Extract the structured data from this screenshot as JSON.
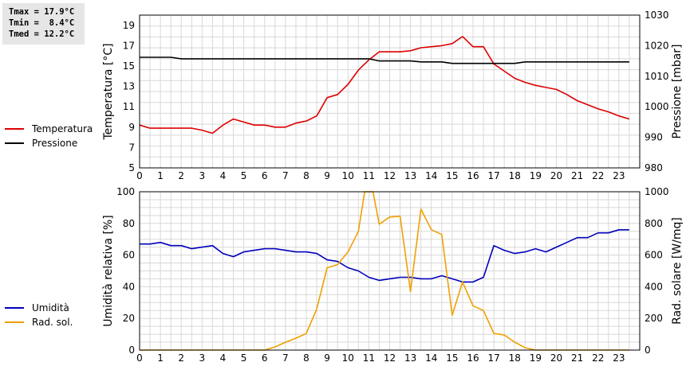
{
  "stats": {
    "tmax": "Tmax = 17.9°C",
    "tmin": "Tmin =  8.4°C",
    "tmed": "Tmed = 12.2°C"
  },
  "colors": {
    "temperature": "#dd0000",
    "pressure": "#000000",
    "humidity": "#0000bb",
    "radiation": "#f0a000",
    "grid": "#d8d8d8"
  },
  "chart_data": [
    {
      "type": "line",
      "x_ticks": [
        "0",
        "1",
        "2",
        "3",
        "4",
        "5",
        "6",
        "7",
        "8",
        "9",
        "10",
        "11",
        "12",
        "13",
        "14",
        "15",
        "16",
        "17",
        "18",
        "19",
        "20",
        "21",
        "22",
        "23"
      ],
      "ylabel": "Temperatura [°C]",
      "ylabel_right": "Pressione [mbar]",
      "ylim": [
        5,
        20
      ],
      "ylim_right": [
        980,
        1030
      ],
      "y_ticks": [
        "5",
        "7",
        "9",
        "11",
        "13",
        "15",
        "17",
        "19"
      ],
      "y_ticks_right": [
        "980",
        "990",
        "1000",
        "1010",
        "1020",
        "1030"
      ],
      "grid": true,
      "series": [
        {
          "name": "Temperatura",
          "axis": "left",
          "color": "#dd0000",
          "x": [
            0,
            0.5,
            1,
            1.5,
            2,
            2.5,
            3,
            3.5,
            4,
            4.5,
            5,
            5.5,
            6,
            6.5,
            7,
            7.5,
            8,
            8.5,
            9,
            9.5,
            10,
            10.5,
            11,
            11.5,
            12,
            12.5,
            13,
            13.5,
            14,
            14.5,
            15,
            15.5,
            16,
            16.5,
            17,
            17.5,
            18,
            18.5,
            19,
            19.5,
            20,
            20.5,
            21,
            21.5,
            22,
            22.5,
            23,
            23.5
          ],
          "y": [
            9.2,
            8.9,
            8.9,
            8.9,
            8.9,
            8.9,
            8.7,
            8.4,
            9.2,
            9.8,
            9.5,
            9.2,
            9.2,
            9.0,
            9.0,
            9.4,
            9.6,
            10.1,
            11.9,
            12.2,
            13.2,
            14.6,
            15.6,
            16.4,
            16.4,
            16.4,
            16.5,
            16.8,
            16.9,
            17.0,
            17.2,
            17.9,
            16.9,
            16.9,
            15.2,
            14.5,
            13.8,
            13.4,
            13.1,
            12.9,
            12.7,
            12.2,
            11.6,
            11.2,
            10.8,
            10.5,
            10.1,
            9.8
          ]
        },
        {
          "name": "Pressione",
          "axis": "right",
          "color": "#000000",
          "x": [
            0,
            1,
            1.5,
            2,
            2.5,
            3,
            4,
            5,
            6,
            7,
            8,
            9,
            10,
            10.5,
            11,
            11.5,
            12,
            13,
            13.5,
            14,
            14.5,
            15,
            15.5,
            16,
            16.5,
            17,
            17.5,
            18,
            18.5,
            19,
            20,
            21,
            22,
            23,
            23.5
          ],
          "y": [
            1016.2,
            1016.2,
            1016.2,
            1015.7,
            1015.7,
            1015.7,
            1015.7,
            1015.7,
            1015.7,
            1015.7,
            1015.7,
            1015.7,
            1015.7,
            1015.7,
            1015.7,
            1015.0,
            1015.0,
            1015.0,
            1014.7,
            1014.7,
            1014.7,
            1014.2,
            1014.2,
            1014.2,
            1014.2,
            1014.2,
            1014.2,
            1014.2,
            1014.7,
            1014.7,
            1014.7,
            1014.7,
            1014.7,
            1014.7,
            1014.7
          ]
        }
      ]
    },
    {
      "type": "line",
      "x_ticks": [
        "0",
        "1",
        "2",
        "3",
        "4",
        "5",
        "6",
        "7",
        "8",
        "9",
        "10",
        "11",
        "12",
        "13",
        "14",
        "15",
        "16",
        "17",
        "18",
        "19",
        "20",
        "21",
        "22",
        "23"
      ],
      "ylabel": "Umidità relativa [%]",
      "ylabel_right": "Rad. solare [W/mq]",
      "ylim": [
        0,
        100
      ],
      "ylim_right": [
        0,
        1000
      ],
      "y_ticks": [
        "0",
        "20",
        "40",
        "60",
        "80",
        "100"
      ],
      "y_ticks_right": [
        "0",
        "200",
        "400",
        "600",
        "800",
        "1000"
      ],
      "grid": true,
      "series": [
        {
          "name": "Umidità",
          "axis": "left",
          "color": "#0000bb",
          "x": [
            0,
            0.5,
            1,
            1.5,
            2,
            2.5,
            3,
            3.5,
            4,
            4.5,
            5,
            5.5,
            6,
            6.5,
            7,
            7.5,
            8,
            8.5,
            9,
            9.5,
            10,
            10.5,
            11,
            11.5,
            12,
            12.5,
            13,
            13.5,
            14,
            14.5,
            15,
            15.5,
            16,
            16.5,
            17,
            17.5,
            18,
            18.5,
            19,
            19.5,
            20,
            20.5,
            21,
            21.5,
            22,
            22.5,
            23,
            23.5
          ],
          "y": [
            67,
            67,
            68,
            66,
            66,
            64,
            65,
            66,
            61,
            59,
            62,
            63,
            64,
            64,
            63,
            62,
            62,
            61,
            57,
            56,
            52,
            50,
            46,
            44,
            45,
            46,
            46,
            45,
            45,
            47,
            45,
            43,
            43,
            46,
            66,
            63,
            61,
            62,
            64,
            62,
            65,
            68,
            71,
            71,
            74,
            74,
            76,
            76
          ]
        },
        {
          "name": "Rad. sol.",
          "axis": "right",
          "color": "#f0a000",
          "x": [
            0,
            0.5,
            1,
            1.5,
            2,
            2.5,
            3,
            3.5,
            4,
            4.5,
            5,
            5.5,
            6,
            6.5,
            7,
            7.5,
            8,
            8.5,
            9,
            9.5,
            10,
            10.5,
            10.8,
            11.2,
            11.5,
            12,
            12.5,
            13,
            13.5,
            14,
            14.5,
            15,
            15.5,
            16,
            16.5,
            17,
            17.5,
            18,
            18.5,
            19,
            19.5,
            20,
            20.5,
            21,
            21.5,
            22,
            22.5,
            23,
            23.5
          ],
          "y": [
            0,
            0,
            0,
            0,
            0,
            0,
            0,
            0,
            0,
            0,
            0,
            0,
            0,
            20,
            50,
            75,
            105,
            260,
            520,
            540,
            620,
            750,
            1000,
            1000,
            795,
            840,
            845,
            370,
            890,
            760,
            730,
            220,
            430,
            280,
            250,
            105,
            95,
            50,
            15,
            0,
            0,
            0,
            0,
            0,
            0,
            0,
            0,
            0,
            0
          ]
        }
      ]
    }
  ]
}
